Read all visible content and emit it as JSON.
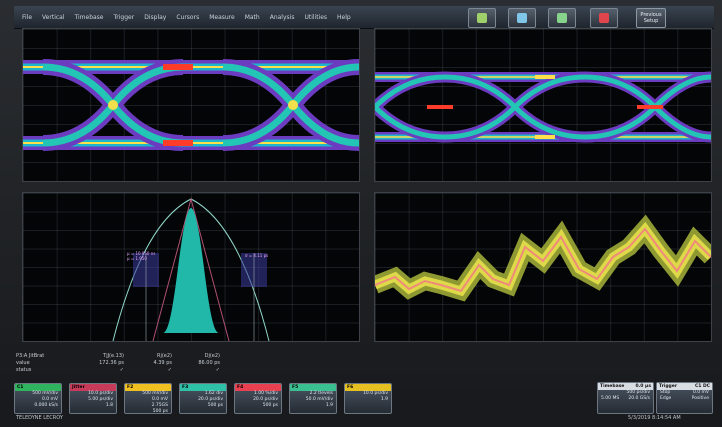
{
  "menu": {
    "items": [
      "File",
      "Vertical",
      "Timebase",
      "Trigger",
      "Display",
      "Cursors",
      "Measure",
      "Math",
      "Analysis",
      "Utilities",
      "Help"
    ],
    "prev_setup": "Previous\nSetup"
  },
  "toolbar": {
    "icons": [
      "acquire-icon",
      "auto-setup-icon",
      "run-icon",
      "stop-icon"
    ],
    "colors": [
      "#9fd06a",
      "#7fc6e8",
      "#88d38c",
      "#e0454d"
    ]
  },
  "measurements": {
    "columns": [
      "TjJ(e.13)",
      "Rj(e2)",
      "Dj(e2)"
    ],
    "param_label": "P3:A JitBrat",
    "rows": [
      {
        "label": "value",
        "values": [
          "172.36 ps",
          "4.39 ps",
          "86.00 ps"
        ]
      },
      {
        "label": "status",
        "values": [
          "✓",
          "✓",
          "✓"
        ]
      }
    ]
  },
  "descriptors": [
    {
      "id": "C1",
      "color": "#2fb35f",
      "lines": [
        "500 mV/div",
        "0.0 mV",
        "0.000 kS/s"
      ]
    },
    {
      "id": "Jitter",
      "color": "#c83a5a",
      "lines": [
        "10.0 ps/div",
        "5.00 ps/div",
        "1.8"
      ]
    },
    {
      "id": "F2",
      "color": "#f0c020",
      "lines": [
        "500 mV/div",
        "0.0 mV",
        "2.75GS",
        "500 ps"
      ]
    },
    {
      "id": "F3",
      "color": "#2fc0a8",
      "lines": [
        "1.62 div",
        "20.0 ps/div",
        "500 ps"
      ]
    },
    {
      "id": "F4",
      "color": "#e84050",
      "lines": [
        "1.00 %/div",
        "20.0 ps/div",
        "500 ps"
      ]
    },
    {
      "id": "F5",
      "color": "#3ac090",
      "lines": [
        "2.2 tlevels",
        "50.0 mV/div",
        "1.9"
      ]
    },
    {
      "id": "F6",
      "color": "#e6c020",
      "lines": [
        "10.0 ps/div",
        "1.9"
      ]
    }
  ],
  "timebase": {
    "title": "Timebase",
    "value": "0.0 µs",
    "lines": [
      [
        "",
        "500 ps/div"
      ],
      [
        "5.00 MS",
        "20.0 GS/s"
      ]
    ]
  },
  "trigger": {
    "title": "Trigger",
    "value": "C1 DC",
    "lines": [
      [
        "Stop",
        "0.0 mV"
      ],
      [
        "Edge",
        "Positive"
      ]
    ]
  },
  "status": {
    "brand": "TELEDYNE LECROY",
    "datetime": "5/3/2019 8:14:54 AM"
  },
  "annotations": {
    "left_label": "μ = 10.950 ns\nμ = 1.950",
    "right_label": "σ = 4.11 ps"
  }
}
